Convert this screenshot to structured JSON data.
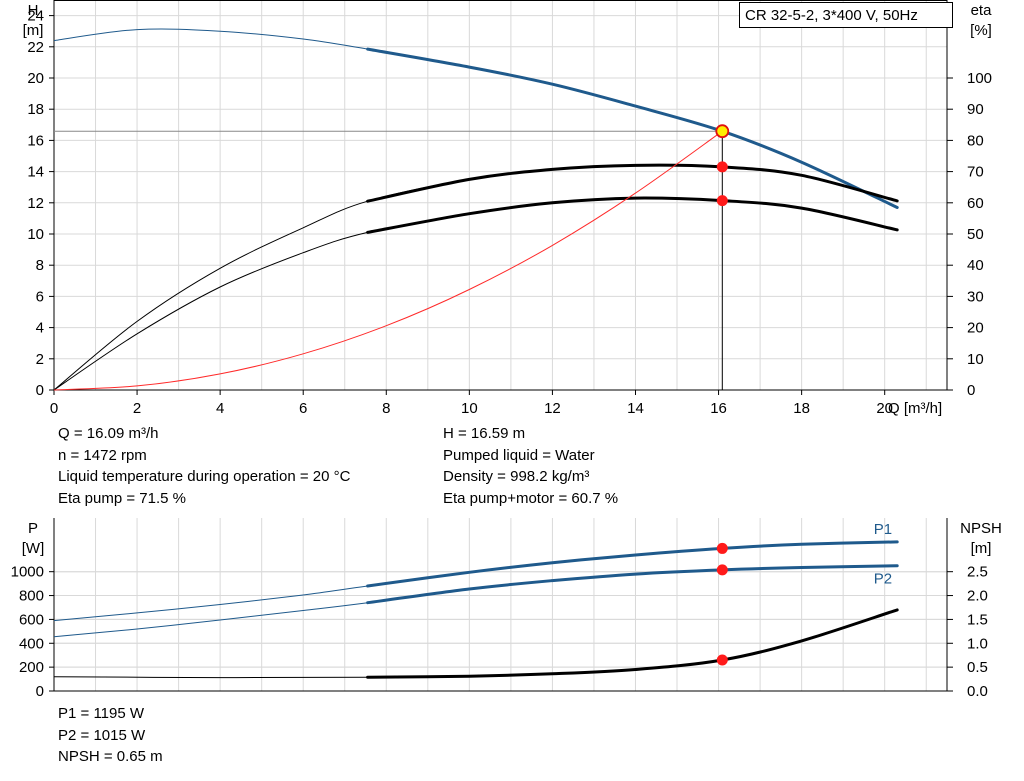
{
  "chart_data": [
    {
      "type": "line",
      "title": "CR 32-5-2, 3*400 V, 50Hz",
      "xlabel": "Q [m³/h]",
      "ylabel_left": [
        "H",
        "[m]"
      ],
      "ylabel_right": [
        "eta",
        "[%]"
      ],
      "xlim": [
        0,
        21.5
      ],
      "ylim_left": [
        0,
        25
      ],
      "ylim_right": [
        0,
        125
      ],
      "x_ticks": [
        "0",
        "2",
        "4",
        "6",
        "8",
        "10",
        "12",
        "14",
        "16",
        "18",
        "20"
      ],
      "y_left_ticks": [
        "0",
        "2",
        "4",
        "6",
        "8",
        "10",
        "12",
        "14",
        "16",
        "18",
        "20",
        "22",
        "24"
      ],
      "y_right_ticks": [
        "0",
        "10",
        "20",
        "30",
        "40",
        "50",
        "60",
        "70",
        "80",
        "90",
        "100"
      ],
      "grid": true,
      "duty_point": {
        "x": 16.09,
        "y": 16.59
      },
      "series": [
        {
          "key": "H",
          "axis": "left",
          "color": "#1f5a8c",
          "x": [
            0,
            2,
            4,
            6,
            7.55,
            10,
            12,
            14,
            16.09,
            18,
            20.3
          ],
          "y": [
            22.4,
            23.1,
            23.0,
            22.5,
            21.85,
            20.7,
            19.6,
            18.2,
            16.59,
            14.6,
            11.7
          ],
          "bold_from": 7.55
        },
        {
          "key": "eta_pump",
          "axis": "right",
          "color": "#000000",
          "x": [
            0,
            2,
            4,
            6,
            7.55,
            10,
            12,
            14,
            16.09,
            18,
            20.3
          ],
          "y": [
            0,
            22,
            39,
            52,
            60.5,
            67.5,
            70.7,
            72.0,
            71.5,
            68.8,
            60.6
          ],
          "bold_from": 7.55
        },
        {
          "key": "eta_pump_motor",
          "axis": "right",
          "color": "#000000",
          "x": [
            0,
            2,
            4,
            6,
            7.55,
            10,
            12,
            14,
            16.09,
            18,
            20.3
          ],
          "y": [
            0,
            18,
            33,
            44,
            50.5,
            56.5,
            60.0,
            61.5,
            60.7,
            58.3,
            51.3
          ],
          "bold_from": 7.55
        },
        {
          "key": "system_curve",
          "axis": "left",
          "color": "#ff2a2a",
          "x": [
            0,
            2,
            4,
            6,
            8,
            10,
            12,
            14,
            16.09
          ],
          "y": [
            0,
            0.26,
            1.03,
            2.32,
            4.12,
            6.44,
            9.27,
            12.62,
            16.59
          ]
        }
      ],
      "markers": [
        {
          "axis": "right",
          "x": 16.09,
          "y": 71.5
        },
        {
          "axis": "right",
          "x": 16.09,
          "y": 60.7
        }
      ]
    },
    {
      "type": "line",
      "xlim": [
        0,
        21.5
      ],
      "ylabel_left": [
        "P",
        "[W]"
      ],
      "ylabel_right": [
        "NPSH",
        "[m]"
      ],
      "ylim_left": [
        0,
        1450
      ],
      "ylim_right": [
        0,
        3.625
      ],
      "y_left_ticks": [
        "0",
        "200",
        "400",
        "600",
        "800",
        "1000"
      ],
      "y_right_ticks": [
        "0.0",
        "0.5",
        "1.0",
        "1.5",
        "2.0",
        "2.5"
      ],
      "grid": true,
      "series": [
        {
          "name": "P1",
          "key": "P1",
          "axis": "left",
          "color": "#1f5a8c",
          "x": [
            0,
            2,
            4,
            6,
            7.55,
            10,
            12,
            14,
            16.09,
            18,
            20.3
          ],
          "y": [
            590,
            655,
            725,
            805,
            880,
            995,
            1075,
            1140,
            1195,
            1230,
            1250
          ],
          "bold_from": 7.55
        },
        {
          "name": "P2",
          "key": "P2",
          "axis": "left",
          "color": "#1f5a8c",
          "x": [
            0,
            2,
            4,
            6,
            7.55,
            10,
            12,
            14,
            16.09,
            18,
            20.3
          ],
          "y": [
            455,
            520,
            595,
            675,
            740,
            855,
            925,
            980,
            1015,
            1035,
            1050
          ],
          "bold_from": 7.55
        },
        {
          "key": "NPSH",
          "axis": "right",
          "color": "#000000",
          "x": [
            0,
            4,
            7.55,
            10,
            12,
            14,
            16.09,
            18,
            20.3
          ],
          "y": [
            0.3,
            0.28,
            0.29,
            0.31,
            0.36,
            0.45,
            0.65,
            1.05,
            1.7
          ],
          "bold_from": 7.55
        }
      ],
      "markers": [
        {
          "axis": "left",
          "x": 16.09,
          "y": 1195
        },
        {
          "axis": "left",
          "x": 16.09,
          "y": 1015
        },
        {
          "axis": "right",
          "x": 16.09,
          "y": 0.65
        }
      ]
    }
  ],
  "info_top_left": [
    "Q = 16.09 m³/h",
    "n = 1472 rpm",
    "Liquid temperature during operation = 20 °C",
    "Eta pump = 71.5 %"
  ],
  "info_top_right": [
    "H = 16.59 m",
    "Pumped liquid = Water",
    "Density = 998.2 kg/m³",
    "Eta pump+motor = 60.7 %"
  ],
  "info_bottom": [
    "P1 = 1195 W",
    "P2 = 1015 W",
    "NPSH = 0.65 m"
  ]
}
